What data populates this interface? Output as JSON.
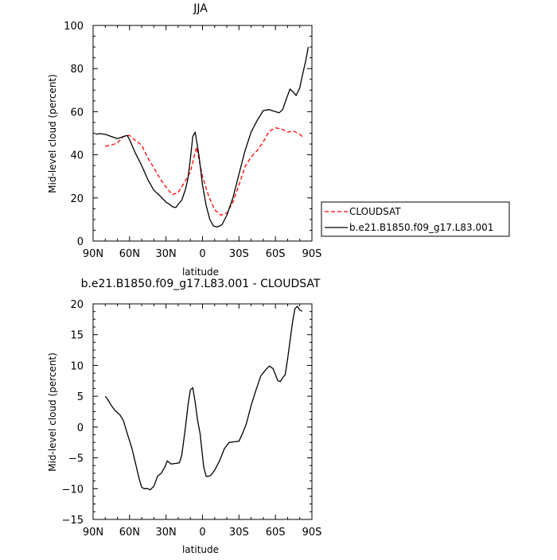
{
  "chart_data": [
    {
      "type": "line",
      "title": "JJA",
      "xlabel": "latitude",
      "ylabel": "Mid-level cloud (percent)",
      "xlim": [
        90,
        -90
      ],
      "ylim": [
        0,
        100
      ],
      "x_ticks": [
        90,
        60,
        30,
        0,
        -30,
        -60,
        -90
      ],
      "x_tick_labels": [
        "90N",
        "60N",
        "30N",
        "0",
        "30S",
        "60S",
        "90S"
      ],
      "y_ticks": [
        0,
        20,
        40,
        60,
        80,
        100
      ],
      "y_tick_labels": [
        "0",
        "20",
        "40",
        "60",
        "80",
        "100"
      ],
      "legend_position": "right",
      "series": [
        {
          "name": "CLOUDSAT",
          "color": "#ff0000",
          "dash": "dashed",
          "x": [
            80,
            75,
            70,
            65,
            60,
            55,
            50,
            45,
            40,
            35,
            30,
            25,
            20,
            15,
            10,
            5,
            0,
            -5,
            -10,
            -15,
            -20,
            -25,
            -30,
            -35,
            -40,
            -45,
            -50,
            -55,
            -60,
            -65,
            -70,
            -75,
            -80,
            -82
          ],
          "y": [
            44,
            44.5,
            45.5,
            48.5,
            49,
            46.5,
            44.5,
            38.5,
            34,
            29,
            25,
            21.5,
            22.5,
            27,
            32,
            43.5,
            30,
            21,
            14.5,
            12,
            13,
            18,
            26,
            34.5,
            39,
            42,
            46,
            51,
            52.5,
            52,
            50.5,
            51,
            49.5,
            48.5
          ]
        },
        {
          "name": "b.e21.B1850.f09_g17.L83.001",
          "color": "#000000",
          "dash": "solid",
          "x": [
            88,
            85,
            80,
            75,
            70,
            65,
            62,
            60,
            55,
            50,
            45,
            40,
            35,
            30,
            27,
            25,
            22,
            20,
            17,
            14,
            12,
            10,
            8,
            6,
            3,
            0,
            -3,
            -6,
            -9,
            -12,
            -16,
            -20,
            -25,
            -30,
            -35,
            -40,
            -45,
            -50,
            -55,
            -57,
            -60,
            -63,
            -66,
            -69,
            -72,
            -74,
            -77,
            -80,
            -82,
            -85,
            -87
          ],
          "y": [
            49.5,
            49.8,
            49.5,
            48.5,
            47.5,
            48.5,
            49,
            47,
            40.5,
            35,
            28.5,
            23.5,
            21,
            18,
            17,
            16,
            15.5,
            17,
            19,
            24,
            29,
            38,
            48.5,
            50.5,
            40,
            26,
            16.5,
            10,
            7,
            6.5,
            7.5,
            12,
            20,
            31,
            42,
            50.5,
            56,
            60.5,
            61,
            60.5,
            60,
            59.5,
            61,
            66,
            70.5,
            69.5,
            67.5,
            71,
            76.5,
            84,
            90
          ]
        }
      ]
    },
    {
      "type": "line",
      "title": "b.e21.B1850.f09_g17.L83.001 - CLOUDSAT",
      "xlabel": "latitude",
      "ylabel": "Mid-level cloud (percent)",
      "xlim": [
        90,
        -90
      ],
      "ylim": [
        -15,
        20
      ],
      "x_ticks": [
        90,
        60,
        30,
        0,
        -30,
        -60,
        -90
      ],
      "x_tick_labels": [
        "90N",
        "60N",
        "30N",
        "0",
        "30S",
        "60S",
        "90S"
      ],
      "y_ticks": [
        -15,
        -10,
        -5,
        0,
        5,
        10,
        15,
        20
      ],
      "y_tick_labels": [
        "−15",
        "−10",
        "−5",
        "0",
        "5",
        "10",
        "15",
        "20"
      ],
      "series": [
        {
          "color": "#000000",
          "dash": "solid",
          "x": [
            80,
            78,
            75,
            72,
            68,
            65,
            62,
            58,
            55,
            52,
            50,
            48,
            45,
            43,
            40,
            37,
            34,
            31,
            29,
            26,
            22,
            19,
            17,
            14,
            12,
            10,
            8,
            6,
            4,
            2,
            -1,
            -3,
            -5,
            -7,
            -10,
            -14,
            -18,
            -22,
            -26,
            -30,
            -33,
            -36,
            -40,
            -44,
            -48,
            -52,
            -55,
            -58,
            -60,
            -62,
            -64,
            -66,
            -68,
            -70,
            -72,
            -74,
            -76,
            -78,
            -80,
            -82
          ],
          "y": [
            5,
            4.5,
            3.5,
            2.7,
            2,
            1,
            -1,
            -3.5,
            -6,
            -8.5,
            -9.8,
            -10,
            -10,
            -10.2,
            -9.6,
            -8,
            -7.5,
            -6.5,
            -5.5,
            -6,
            -5.9,
            -5.8,
            -4.5,
            0,
            3.5,
            6,
            6.4,
            4,
            1,
            -1,
            -6.5,
            -8,
            -8,
            -7.8,
            -7,
            -5.5,
            -3.5,
            -2.5,
            -2.4,
            -2.3,
            -1,
            0.5,
            3.5,
            6,
            8.3,
            9.3,
            9.9,
            9.5,
            8.5,
            7.5,
            7.4,
            8,
            8.5,
            11,
            14,
            17,
            19.2,
            19.6,
            19,
            18.8
          ]
        }
      ]
    }
  ]
}
